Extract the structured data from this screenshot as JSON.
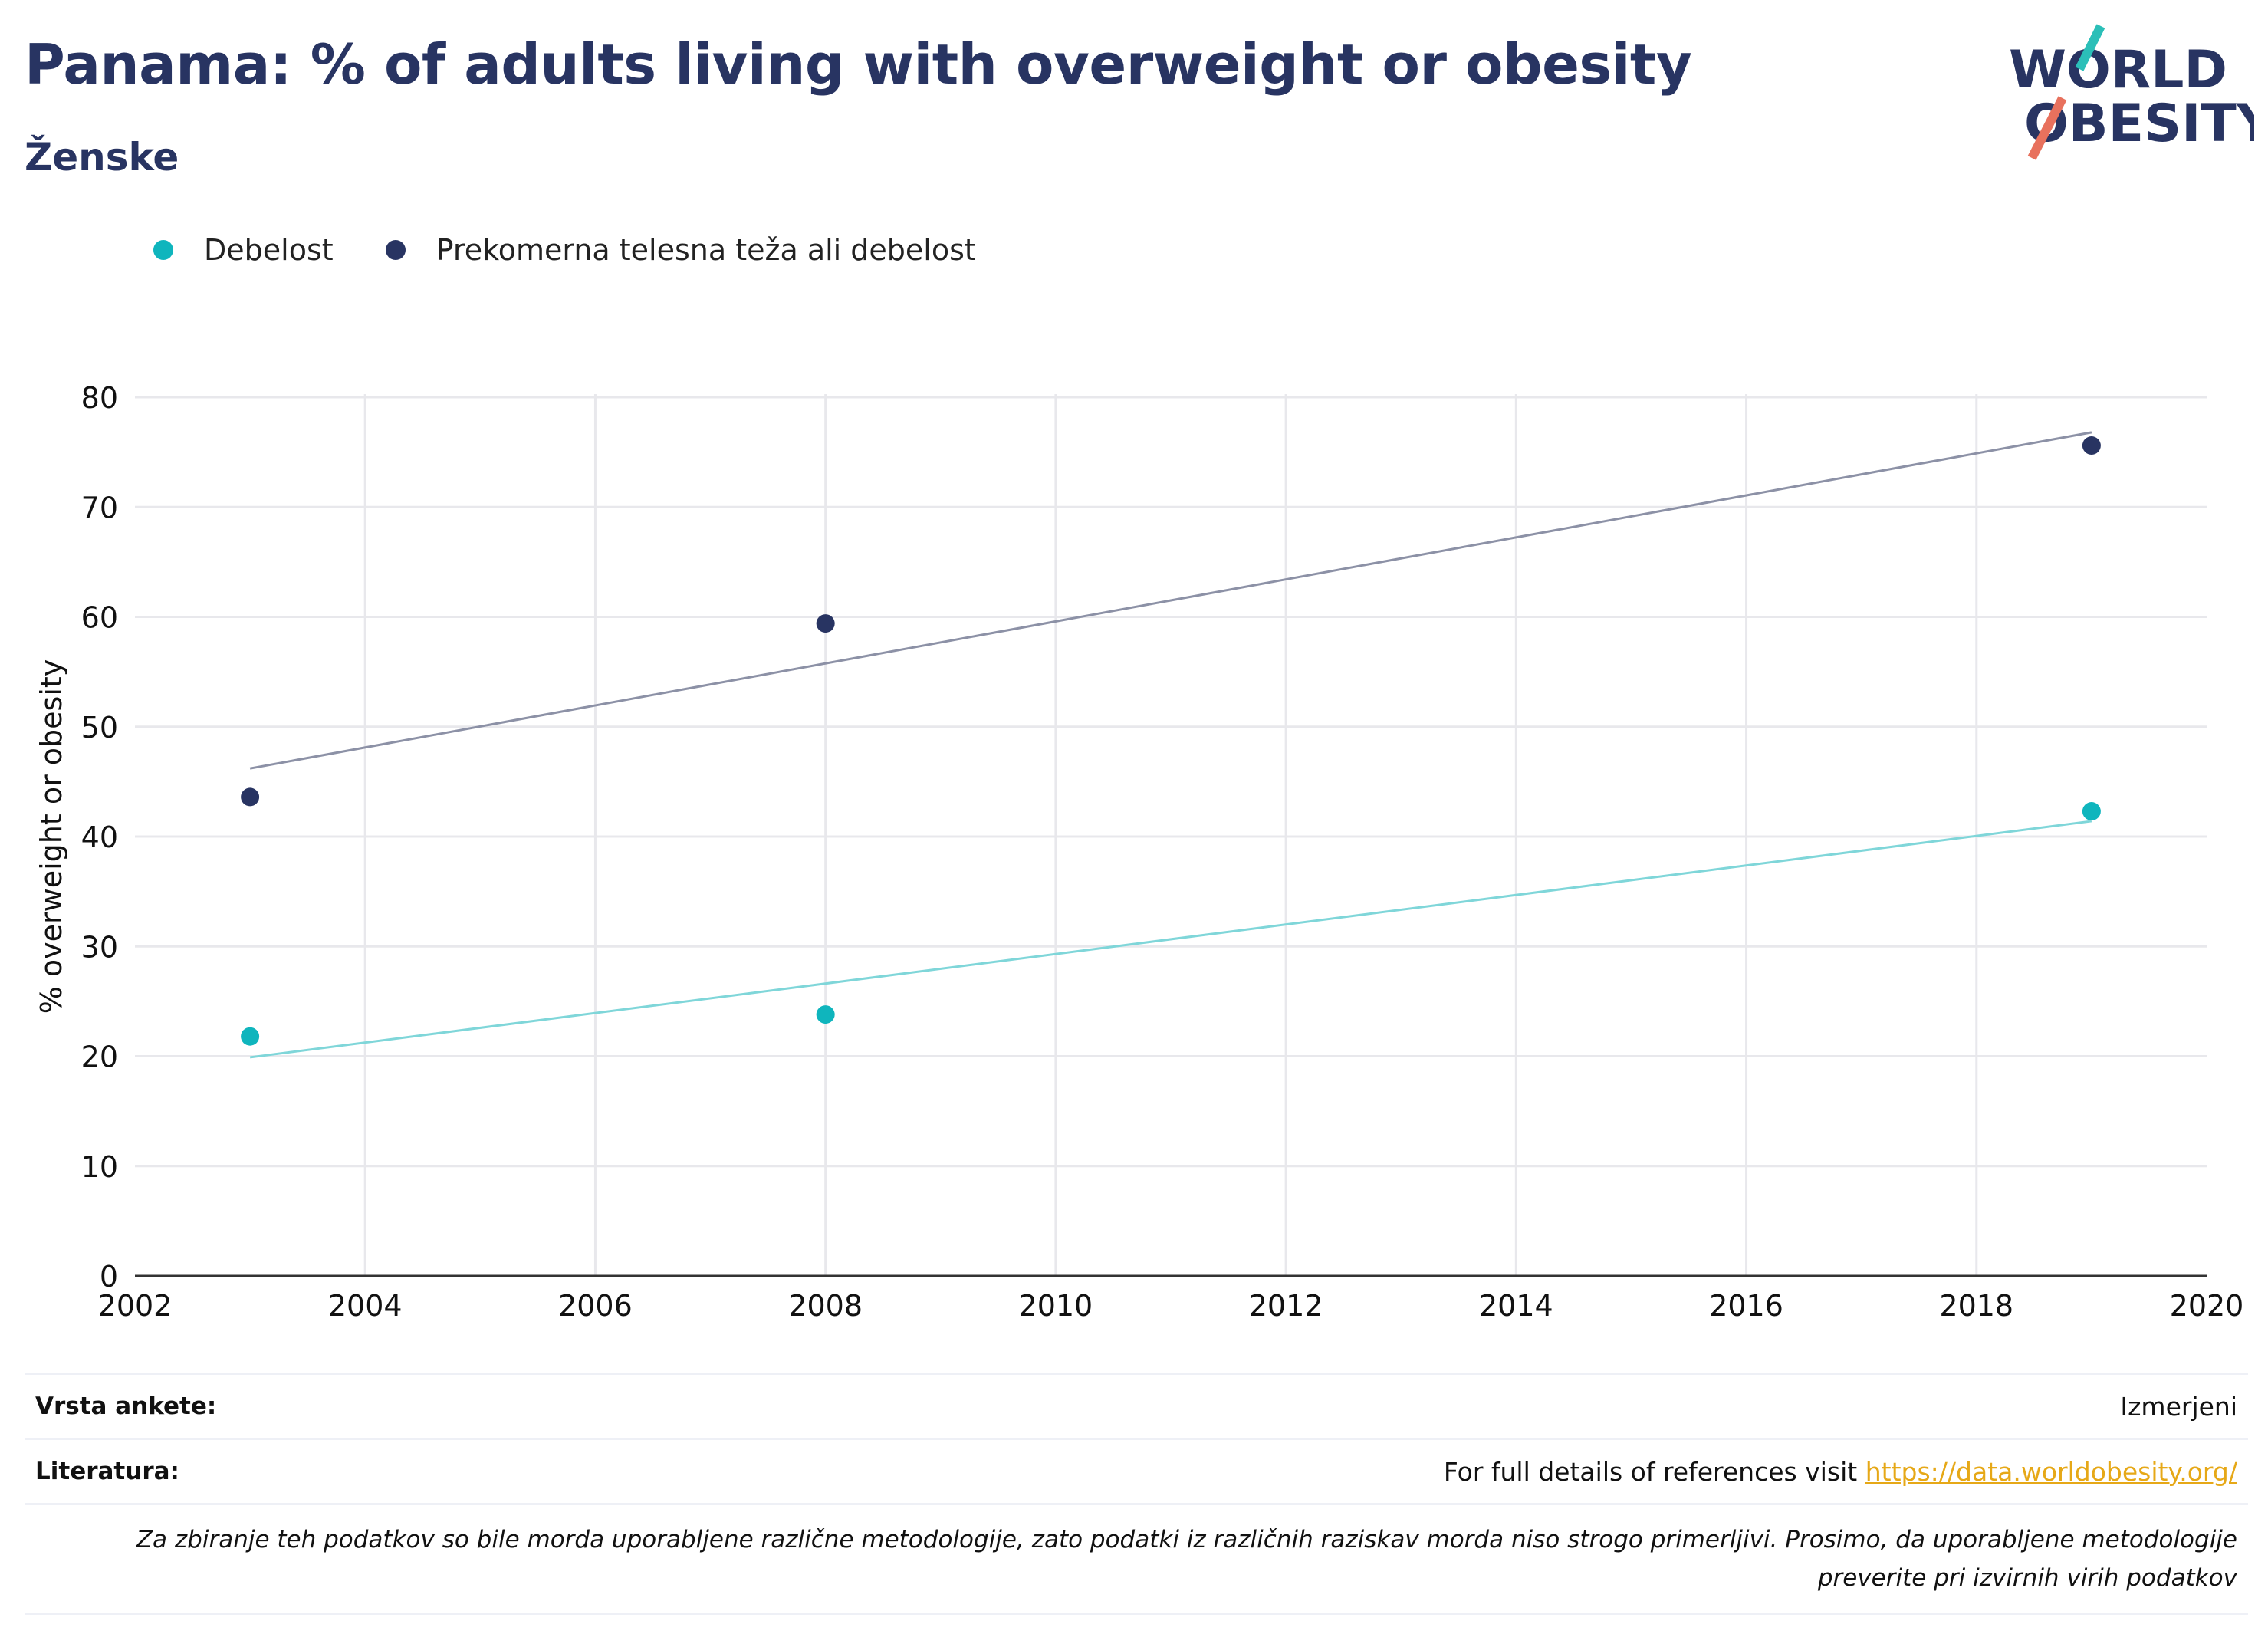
{
  "title": "Panama: % of adults living with overweight or obesity",
  "subtitle": "Ženske",
  "logo": {
    "line1": "WORLD",
    "line2": "OBESITY"
  },
  "colors": {
    "obesity": "#0fb5bd",
    "overweight": "#283462",
    "obesity_trend": "#7fd6d9",
    "overweight_trend": "#8c91a6"
  },
  "legend": [
    {
      "label": "Debelost",
      "color": "#0fb5bd"
    },
    {
      "label": "Prekomerna telesna teža ali debelost",
      "color": "#283462"
    }
  ],
  "chart_data": {
    "type": "scatter",
    "ylabel": "% overweight or obesity",
    "xlabel": "",
    "xlim": [
      2002,
      2020
    ],
    "ylim": [
      0,
      80
    ],
    "xticks": [
      2002,
      2004,
      2006,
      2008,
      2010,
      2012,
      2014,
      2016,
      2018,
      2020
    ],
    "yticks": [
      0,
      10,
      20,
      30,
      40,
      50,
      60,
      70,
      80
    ],
    "grid": true,
    "legend_position": "top-left",
    "series": [
      {
        "name": "Debelost",
        "color": "#0fb5bd",
        "points": [
          {
            "x": 2003,
            "y": 21.8
          },
          {
            "x": 2008,
            "y": 23.8
          },
          {
            "x": 2019,
            "y": 42.3
          }
        ],
        "trend": [
          {
            "x": 2003,
            "y": 19.9
          },
          {
            "x": 2019,
            "y": 41.4
          }
        ]
      },
      {
        "name": "Prekomerna telesna teža ali debelost",
        "color": "#283462",
        "points": [
          {
            "x": 2003,
            "y": 43.6
          },
          {
            "x": 2008,
            "y": 59.4
          },
          {
            "x": 2019,
            "y": 75.6
          }
        ],
        "trend": [
          {
            "x": 2003,
            "y": 46.2
          },
          {
            "x": 2019,
            "y": 76.8
          }
        ]
      }
    ]
  },
  "footer": {
    "survey_label": "Vrsta ankete:",
    "survey_value": "Izmerjeni",
    "references_label": "Literatura:",
    "references_text": "For full details of references visit ",
    "references_link": "https://data.worldobesity.org/",
    "note": "Za zbiranje teh podatkov so bile morda uporabljene različne metodologije, zato podatki iz različnih raziskav morda niso strogo primerljivi. Prosimo, da uporabljene metodologije preverite pri izvirnih virih podatkov"
  }
}
